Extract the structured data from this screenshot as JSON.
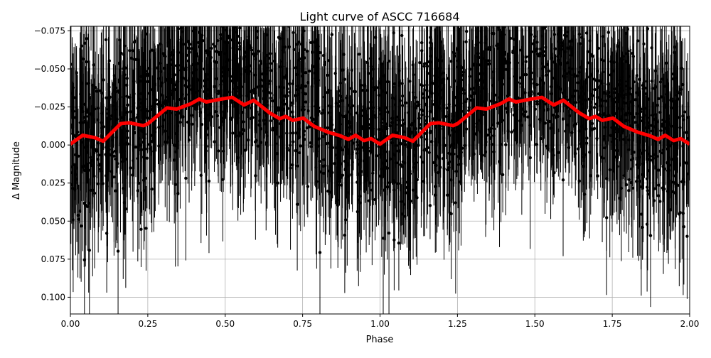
{
  "chart_data": {
    "type": "scatter",
    "title": "Light curve of ASCC 716684",
    "xlabel": "Phase",
    "ylabel": "Δ Magnitude",
    "xlim": [
      0,
      2
    ],
    "ylim": [
      0.111,
      -0.078
    ],
    "y_inverted": true,
    "grid": true,
    "x_ticks": [
      "0.00",
      "0.25",
      "0.50",
      "0.75",
      "1.00",
      "1.25",
      "1.50",
      "1.75",
      "2.00"
    ],
    "y_ticks": [
      "−0.075",
      "−0.050",
      "−0.025",
      "0.000",
      "0.025",
      "0.050",
      "0.075",
      "0.100"
    ],
    "x_tick_values": [
      0,
      0.25,
      0.5,
      0.75,
      1,
      1.25,
      1.5,
      1.75,
      2
    ],
    "y_tick_values": [
      -0.075,
      -0.05,
      -0.025,
      0,
      0.025,
      0.05,
      0.075,
      0.1
    ],
    "series": [
      {
        "kind": "errorbar-points",
        "color": "#000000",
        "scatter_std": 0.035
      },
      {
        "kind": "binned-line",
        "color": "#ff0000",
        "x": [
          0,
          0.04,
          0.079,
          0.106,
          0.163,
          0.19,
          0.236,
          0.251,
          0.312,
          0.343,
          0.389,
          0.416,
          0.439,
          0.488,
          0.523,
          0.561,
          0.592,
          0.645,
          0.676,
          0.695,
          0.718,
          0.752,
          0.787,
          0.833,
          0.871,
          0.898,
          0.921,
          0.948,
          0.971,
          1.0,
          1.04,
          1.079,
          1.106,
          1.163,
          1.19,
          1.236,
          1.251,
          1.312,
          1.343,
          1.389,
          1.416,
          1.439,
          1.488,
          1.523,
          1.561,
          1.592,
          1.645,
          1.676,
          1.695,
          1.718,
          1.752,
          1.787,
          1.833,
          1.871,
          1.898,
          1.921,
          1.948,
          1.971,
          2.0
        ],
        "y": [
          -0.0006,
          -0.0064,
          -0.0048,
          -0.0025,
          -0.0141,
          -0.0146,
          -0.0127,
          -0.0141,
          -0.0244,
          -0.0236,
          -0.0271,
          -0.0302,
          -0.0283,
          -0.0302,
          -0.0313,
          -0.0263,
          -0.0294,
          -0.0209,
          -0.0173,
          -0.0188,
          -0.0162,
          -0.0177,
          -0.0123,
          -0.0084,
          -0.0061,
          -0.0037,
          -0.0064,
          -0.0029,
          -0.0042,
          -0.0006,
          -0.0064,
          -0.0048,
          -0.0025,
          -0.0141,
          -0.0146,
          -0.0127,
          -0.0141,
          -0.0244,
          -0.0236,
          -0.0271,
          -0.0302,
          -0.0283,
          -0.0302,
          -0.0313,
          -0.0263,
          -0.0294,
          -0.0209,
          -0.0173,
          -0.0188,
          -0.0162,
          -0.0177,
          -0.0123,
          -0.0084,
          -0.0061,
          -0.0037,
          -0.0064,
          -0.0029,
          -0.0042,
          -0.0006
        ]
      }
    ]
  }
}
